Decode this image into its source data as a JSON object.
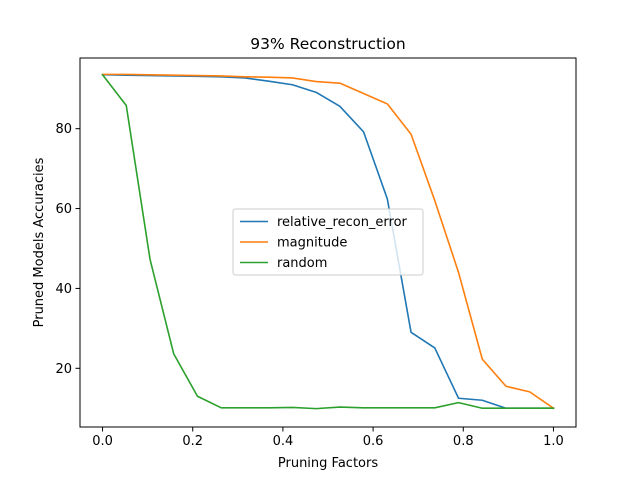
{
  "chart_data": {
    "type": "line",
    "title": "93% Reconstruction",
    "xlabel": "Pruning Factors",
    "ylabel": "Pruned Models Accuracies",
    "xlim": [
      -0.05,
      1.05
    ],
    "ylim": [
      5.3,
      97.7
    ],
    "xticks": [
      0.0,
      0.2,
      0.4,
      0.6,
      0.8,
      1.0
    ],
    "xtick_labels": [
      "0.0",
      "0.2",
      "0.4",
      "0.6",
      "0.8",
      "1.0"
    ],
    "yticks": [
      20,
      40,
      60,
      80
    ],
    "ytick_labels": [
      "20",
      "40",
      "60",
      "80"
    ],
    "grid": false,
    "legend_position": "center-right",
    "x": [
      0.0,
      0.0526,
      0.1053,
      0.1579,
      0.2105,
      0.2632,
      0.3158,
      0.3684,
      0.4211,
      0.4737,
      0.5263,
      0.5789,
      0.6316,
      0.6842,
      0.7368,
      0.7895,
      0.8421,
      0.8947,
      0.9474,
      1.0
    ],
    "series": [
      {
        "name": "relative_recon_error",
        "color": "#1f77b4",
        "values": [
          93.5,
          93.4,
          93.3,
          93.2,
          93.1,
          93.0,
          92.7,
          91.9,
          91.0,
          89.1,
          85.6,
          79.2,
          62.4,
          29.0,
          25.1,
          12.5,
          12.0,
          10.0,
          10.0,
          10.0
        ]
      },
      {
        "name": "magnitude",
        "color": "#ff7f0e",
        "values": [
          93.6,
          93.6,
          93.5,
          93.4,
          93.3,
          93.2,
          93.0,
          92.9,
          92.7,
          91.8,
          91.4,
          88.8,
          86.2,
          78.6,
          62.0,
          44.0,
          22.3,
          15.5,
          14.1,
          10.0
        ]
      },
      {
        "name": "random",
        "color": "#2ca02c",
        "values": [
          93.5,
          85.8,
          47.3,
          23.6,
          13.0,
          10.1,
          10.1,
          10.1,
          10.2,
          9.9,
          10.3,
          10.1,
          10.1,
          10.1,
          10.1,
          11.4,
          10.0,
          10.0,
          10.0,
          10.0
        ]
      }
    ]
  }
}
